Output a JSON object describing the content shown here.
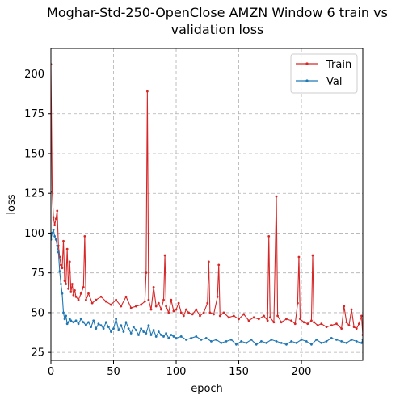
{
  "chart_data": {
    "type": "line",
    "title_lines": [
      "Moghar-Std-250-OpenClose AMZN Window 6 train vs",
      "validation loss"
    ],
    "xlabel": "epoch",
    "ylabel": "loss",
    "xlim": [
      0,
      249
    ],
    "ylim": [
      20,
      216
    ],
    "x_ticks": [
      0,
      50,
      100,
      150,
      200
    ],
    "y_ticks": [
      25,
      50,
      75,
      100,
      125,
      150,
      175,
      200
    ],
    "grid": true,
    "grid_style": "dashed",
    "legend_position": "top-right",
    "series": [
      {
        "name": "Train",
        "color": "#d62728",
        "x": [
          0,
          1,
          2,
          3,
          4,
          5,
          6,
          7,
          8,
          9,
          10,
          11,
          12,
          13,
          14,
          15,
          16,
          17,
          18,
          19,
          20,
          22,
          24,
          26,
          27,
          28,
          30,
          33,
          36,
          40,
          44,
          48,
          52,
          56,
          60,
          64,
          68,
          72,
          75,
          76,
          77,
          78,
          80,
          82,
          84,
          86,
          88,
          90,
          91,
          92,
          94,
          96,
          98,
          100,
          102,
          104,
          106,
          108,
          110,
          113,
          116,
          119,
          122,
          125,
          126,
          127,
          130,
          133,
          134,
          135,
          138,
          142,
          146,
          150,
          154,
          158,
          162,
          166,
          170,
          173,
          174,
          175,
          178,
          180,
          181,
          184,
          188,
          192,
          195,
          197,
          198,
          199,
          202,
          205,
          208,
          209,
          210,
          213,
          216,
          220,
          224,
          228,
          232,
          234,
          236,
          238,
          240,
          242,
          244,
          246,
          248,
          249
        ],
        "values": [
          206,
          126,
          110,
          105,
          109,
          114,
          92,
          85,
          80,
          78,
          95,
          70,
          68,
          90,
          65,
          82,
          63,
          68,
          61,
          64,
          60,
          58,
          62,
          66,
          98,
          58,
          62,
          56,
          58,
          60,
          57,
          55,
          58,
          54,
          60,
          53,
          54,
          55,
          57,
          75,
          189,
          58,
          52,
          66,
          54,
          56,
          52,
          58,
          86,
          54,
          50,
          58,
          51,
          52,
          56,
          50,
          48,
          52,
          50,
          49,
          52,
          48,
          50,
          56,
          82,
          50,
          49,
          60,
          80,
          48,
          50,
          47,
          48,
          46,
          49,
          45,
          47,
          46,
          48,
          45,
          98,
          47,
          44,
          123,
          48,
          44,
          46,
          45,
          43,
          56,
          85,
          46,
          44,
          43,
          45,
          86,
          44,
          42,
          43,
          41,
          42,
          43,
          40,
          54,
          44,
          42,
          52,
          41,
          40,
          43,
          48,
          36
        ]
      },
      {
        "name": "Val",
        "color": "#1f77b4",
        "x": [
          0,
          1,
          2,
          3,
          4,
          5,
          6,
          7,
          8,
          9,
          10,
          11,
          12,
          13,
          14,
          15,
          16,
          18,
          20,
          22,
          24,
          26,
          28,
          30,
          32,
          34,
          36,
          38,
          40,
          42,
          44,
          46,
          48,
          50,
          52,
          54,
          56,
          58,
          60,
          62,
          64,
          66,
          68,
          70,
          72,
          74,
          76,
          78,
          80,
          82,
          84,
          86,
          88,
          90,
          92,
          94,
          96,
          98,
          100,
          104,
          108,
          112,
          116,
          120,
          124,
          128,
          132,
          136,
          140,
          144,
          148,
          152,
          156,
          160,
          164,
          168,
          172,
          176,
          180,
          184,
          188,
          192,
          196,
          200,
          204,
          208,
          212,
          216,
          220,
          224,
          228,
          232,
          236,
          240,
          244,
          248,
          249
        ],
        "values": [
          96,
          100,
          102,
          98,
          96,
          92,
          88,
          76,
          68,
          62,
          50,
          46,
          48,
          43,
          44,
          46,
          45,
          44,
          45,
          43,
          46,
          44,
          42,
          44,
          41,
          45,
          40,
          43,
          42,
          40,
          44,
          41,
          38,
          40,
          46,
          39,
          42,
          38,
          44,
          40,
          37,
          41,
          39,
          36,
          40,
          38,
          37,
          42,
          36,
          39,
          35,
          38,
          36,
          35,
          37,
          34,
          36,
          35,
          34,
          35,
          33,
          34,
          35,
          33,
          34,
          32,
          33,
          31,
          32,
          33,
          30,
          32,
          31,
          33,
          30,
          32,
          31,
          33,
          32,
          31,
          30,
          32,
          31,
          33,
          32,
          30,
          33,
          31,
          32,
          34,
          33,
          32,
          31,
          33,
          32,
          31,
          33
        ]
      }
    ]
  }
}
